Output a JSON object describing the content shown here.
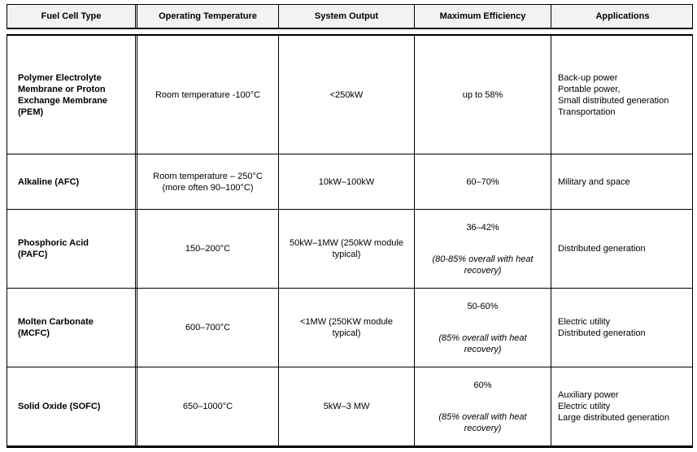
{
  "colors": {
    "header_background": "#f2f2f2",
    "border": "#000000",
    "text": "#000000"
  },
  "header": {
    "columns": [
      "Fuel Cell Type",
      "Operating Temperature",
      "System Output",
      "Maximum Efficiency",
      "Applications"
    ]
  },
  "rows": [
    {
      "type": "Polymer Electrolyte\nMembrane or Proton\nExchange Membrane\n(PEM)",
      "temperature": "Room temperature -100°C",
      "output": "<250kW",
      "efficiency": "up to 58%",
      "efficiency_note": "",
      "applications": [
        "Back-up power",
        "Portable power,",
        "Small distributed generation",
        "Transportation"
      ]
    },
    {
      "type": "Alkaline (AFC)",
      "temperature": "Room temperature – 250°C\n(more often 90–100°C)",
      "output": "10kW–100kW",
      "efficiency": "60–70%",
      "efficiency_note": "",
      "applications": [
        "Military and space"
      ]
    },
    {
      "type": "Phosphoric Acid\n(PAFC)",
      "temperature": "150–200°C",
      "output": "50kW–1MW (250kW module\ntypical)",
      "efficiency": "36–42%",
      "efficiency_note": "(80-85% overall with heat\nrecovery)",
      "applications": [
        "Distributed generation"
      ]
    },
    {
      "type": "Molten Carbonate\n(MCFC)",
      "temperature": "600–700°C",
      "output": "<1MW (250KW  module\ntypical)",
      "efficiency": "50-60%",
      "efficiency_note": "(85% overall with heat recovery)",
      "applications": [
        "Electric utility",
        "Distributed generation"
      ]
    },
    {
      "type": "Solid Oxide (SOFC)",
      "temperature": "650–1000°C",
      "output": "5kW–3 MW",
      "efficiency": "60%",
      "efficiency_note": "(85% overall with heat recovery)",
      "applications": [
        "Auxiliary power",
        "Electric utility",
        "Large distributed generation"
      ]
    }
  ]
}
